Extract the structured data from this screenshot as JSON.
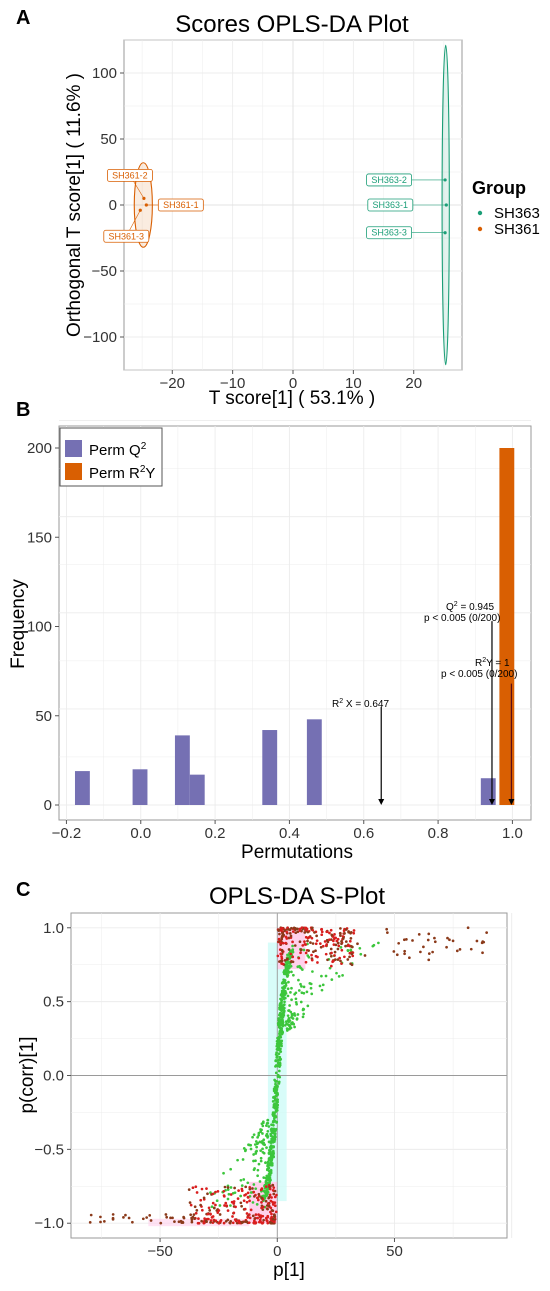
{
  "chart_data": [
    {
      "panel": "A",
      "type": "scatter",
      "title": "Scores OPLS-DA Plot",
      "xlabel": "T score[1] ( 53.1% )",
      "ylabel": "Orthogonal T score[1] ( 11.6% )",
      "xlim": [
        -28,
        28
      ],
      "ylim": [
        -125,
        125
      ],
      "xticks": [
        -20,
        -10,
        0,
        10,
        20
      ],
      "yticks": [
        -100,
        -50,
        0,
        50,
        100
      ],
      "grid": true,
      "legend": {
        "title": "Group",
        "position": "right",
        "entries": [
          "SH363",
          "SH361"
        ]
      },
      "colors": {
        "SH363": "#1b9e77",
        "SH361": "#d95f02"
      },
      "series": [
        {
          "name": "SH363",
          "points": [
            {
              "label": "SH363-2",
              "x": 25.2,
              "y": 19
            },
            {
              "label": "SH363-1",
              "x": 25.4,
              "y": 0
            },
            {
              "label": "SH363-3",
              "x": 25.2,
              "y": -21
            }
          ],
          "ellipse": {
            "cx": 25.3,
            "cy": 0,
            "rx": 0.6,
            "ry": 121
          }
        },
        {
          "name": "SH361",
          "points": [
            {
              "label": "SH361-2",
              "x": -24.7,
              "y": 5
            },
            {
              "label": "SH361-1",
              "x": -24.3,
              "y": 0
            },
            {
              "label": "SH361-3",
              "x": -25.3,
              "y": -4
            }
          ],
          "ellipse": {
            "cx": -24.8,
            "cy": 0,
            "rx": 1.5,
            "ry": 32
          }
        }
      ]
    },
    {
      "panel": "B",
      "type": "bar",
      "title": "",
      "xlabel": "Permutations",
      "ylabel": "Frequency",
      "xlim": [
        -0.22,
        1.05
      ],
      "ylim": [
        0,
        205
      ],
      "xticks": [
        "-0.2",
        "0.0",
        "0.2",
        "0.4",
        "0.6",
        "0.8",
        "1.0"
      ],
      "yticks": [
        0,
        50,
        100,
        150,
        200
      ],
      "grid": true,
      "legend": {
        "position": "top-left"
      },
      "colors": {
        "q2": "#7570b3",
        "r2y": "#d95f02"
      },
      "series": [
        {
          "name": "Perm Q²",
          "bins": [
            {
              "x": -0.157,
              "count": 19
            },
            {
              "x": -0.002,
              "count": 20
            },
            {
              "x": 0.112,
              "count": 39
            },
            {
              "x": 0.152,
              "count": 17
            },
            {
              "x": 0.347,
              "count": 42
            },
            {
              "x": 0.467,
              "count": 48
            },
            {
              "x": 0.935,
              "count": 15
            }
          ]
        },
        {
          "name": "Perm R²Y",
          "bins": [
            {
              "x": 0.985,
              "count": 200
            }
          ]
        }
      ],
      "annotations": [
        {
          "line1": "R² X = 0.647",
          "line2": "",
          "x": 0.647,
          "top": 55
        },
        {
          "line1": "Q² = 0.945",
          "line2": "p < 0.005 (0/200)",
          "x": 0.945,
          "top": 103
        },
        {
          "line1": "R² Y = 1",
          "line2": "p < 0.005 (0/200)",
          "x": 1.0,
          "top": 68
        }
      ]
    },
    {
      "panel": "C",
      "type": "scatter",
      "title": "OPLS-DA S-Plot",
      "xlabel": "p[1]",
      "ylabel": "p(corr)[1]",
      "xlim": [
        -88,
        98
      ],
      "ylim": [
        -1.1,
        1.1
      ],
      "xticks": [
        -50,
        0,
        50
      ],
      "yticks": [
        "-1.0",
        "-0.5",
        "0.0",
        "0.5",
        "1.0"
      ],
      "grid": true,
      "colors": {
        "high_vip": "#d91e1e",
        "high_vip_dark": "#8b3a1a",
        "low_vip": "#3cc63c",
        "highlight_pink": "#ffd1ec",
        "highlight_cyan": "#c8fbf6"
      },
      "point_count_note": "approx. 1500 metabolites"
    }
  ],
  "panel_letters": {
    "a": "A",
    "b": "B",
    "c": "C"
  },
  "panelA": {
    "title": "Scores OPLS-DA Plot",
    "xlabel": "T score[1] ( 53.1% )",
    "ylabel": "Orthogonal T score[1] ( 11.6% )",
    "legend_title": "Group",
    "legend": [
      "SH363",
      "SH361"
    ]
  },
  "panelB": {
    "xlabel": "Permutations",
    "ylabel": "Frequency",
    "legend_q2": "Perm Q",
    "legend_q2_sup": "2",
    "legend_r2y_pre": "Perm R",
    "legend_r2y_sup": "2",
    "legend_r2y_post": "Y",
    "ann_r2x": "R",
    "ann_r2x_sup": "2",
    "ann_r2x_rest": " X = 0.647",
    "ann_q2": "Q",
    "ann_q2_sup": "2",
    "ann_q2_rest": " = 0.945",
    "ann_q2_p": "p < 0.005 (0/200)",
    "ann_r2y": "R",
    "ann_r2y_sup": "2",
    "ann_r2y_rest": "Y = 1",
    "ann_r2y_p": "p < 0.005 (0/200)"
  },
  "panelC": {
    "title": "OPLS-DA S-Plot",
    "xlabel": "p[1]",
    "ylabel": "p(corr)[1]"
  }
}
